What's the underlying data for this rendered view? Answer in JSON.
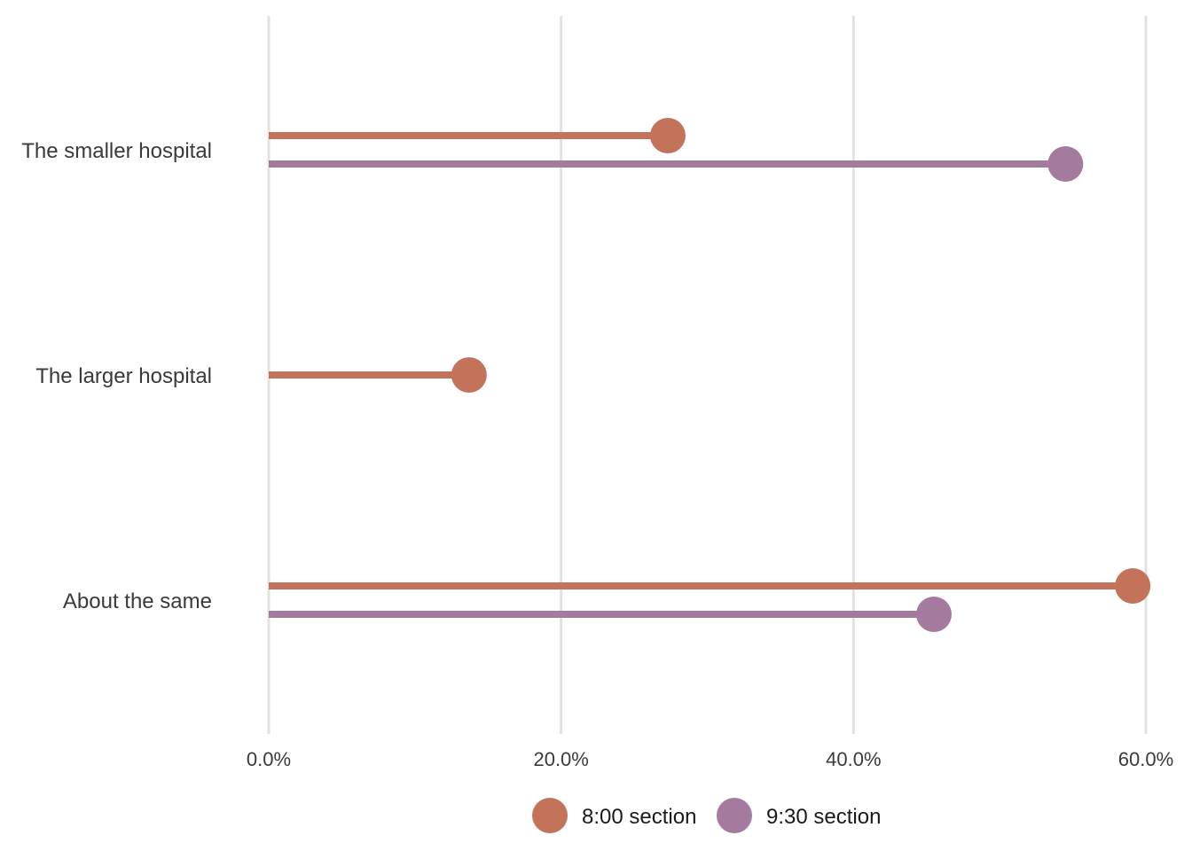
{
  "chart_data": {
    "type": "lollipop",
    "orientation": "horizontal",
    "categories": [
      "The smaller hospital",
      "The larger hospital",
      "About the same"
    ],
    "series": [
      {
        "name": "8:00 section",
        "color": "#c4735b",
        "values": [
          27.3,
          13.7,
          59.1
        ]
      },
      {
        "name": "9:30 section",
        "color": "#a47a9f",
        "values": [
          54.5,
          null,
          45.5
        ]
      }
    ],
    "xlim": [
      0,
      60
    ],
    "x_ticks": [
      0,
      20,
      40,
      60
    ],
    "x_tick_labels": [
      "0.0%",
      "20.0%",
      "40.0%",
      "60.0%"
    ],
    "grid": "vertical-major",
    "legend_position": "bottom"
  }
}
